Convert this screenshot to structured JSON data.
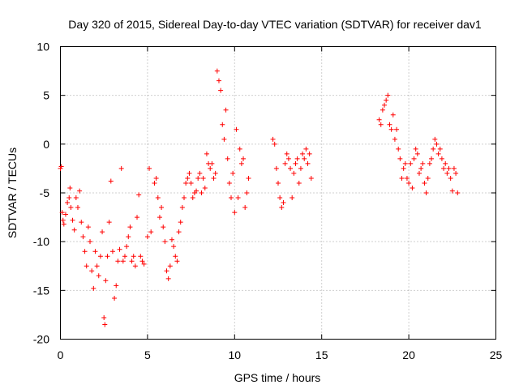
{
  "chart_data": {
    "type": "scatter",
    "title": "Day 320 of 2015, Sidereal Day-to-day VTEC variation (SDTVAR) for receiver dav1",
    "xlabel": "GPS time / hours",
    "ylabel": "SDTVAR / TECUs",
    "xlim": [
      0,
      25
    ],
    "ylim": [
      -20,
      10
    ],
    "xticks": [
      0,
      5,
      10,
      15,
      20,
      25
    ],
    "xtick_labels": [
      "0",
      "5",
      "10",
      "15",
      "20",
      "25"
    ],
    "yticks": [
      -20,
      -15,
      -10,
      -5,
      0,
      5,
      10
    ],
    "ytick_labels": [
      "-20",
      "-15",
      "-10",
      "-5",
      "0",
      "5",
      "10"
    ],
    "grid": true,
    "marker": "+",
    "color": "#ff0000",
    "series": [
      {
        "name": "dav1",
        "x": [
          0.0,
          0.05,
          0.1,
          0.15,
          0.2,
          0.3,
          0.4,
          0.5,
          0.55,
          0.6,
          0.7,
          0.8,
          0.9,
          1.0,
          1.1,
          1.2,
          1.3,
          1.4,
          1.5,
          1.6,
          1.7,
          1.8,
          1.9,
          2.0,
          2.1,
          2.2,
          2.3,
          2.4,
          2.5,
          2.55,
          2.6,
          2.7,
          2.8,
          2.9,
          3.0,
          3.1,
          3.2,
          3.3,
          3.4,
          3.5,
          3.6,
          3.7,
          3.8,
          3.9,
          4.0,
          4.1,
          4.2,
          4.3,
          4.4,
          4.5,
          4.6,
          4.7,
          4.8,
          5.0,
          5.1,
          5.2,
          5.4,
          5.5,
          5.6,
          5.7,
          5.8,
          5.9,
          6.0,
          6.1,
          6.2,
          6.3,
          6.4,
          6.5,
          6.6,
          6.7,
          6.8,
          6.9,
          7.0,
          7.1,
          7.2,
          7.3,
          7.4,
          7.5,
          7.6,
          7.7,
          7.8,
          7.9,
          8.0,
          8.1,
          8.2,
          8.3,
          8.4,
          8.5,
          8.6,
          8.7,
          8.8,
          8.9,
          9.0,
          9.1,
          9.2,
          9.3,
          9.4,
          9.5,
          9.6,
          9.7,
          9.8,
          9.9,
          10.0,
          10.1,
          10.2,
          10.3,
          10.4,
          10.5,
          10.6,
          10.7,
          10.8,
          12.2,
          12.3,
          12.4,
          12.5,
          12.6,
          12.7,
          12.8,
          12.9,
          13.0,
          13.1,
          13.2,
          13.3,
          13.4,
          13.5,
          13.6,
          13.7,
          13.8,
          13.9,
          14.0,
          14.1,
          14.2,
          14.3,
          14.4,
          18.3,
          18.4,
          18.5,
          18.6,
          18.7,
          18.8,
          18.9,
          19.0,
          19.1,
          19.2,
          19.3,
          19.4,
          19.5,
          19.6,
          19.7,
          19.8,
          19.9,
          20.0,
          20.1,
          20.2,
          20.3,
          20.4,
          20.5,
          20.6,
          20.7,
          20.8,
          20.9,
          21.0,
          21.1,
          21.2,
          21.3,
          21.4,
          21.5,
          21.6,
          21.7,
          21.8,
          21.9,
          22.0,
          22.1,
          22.2,
          22.3,
          22.4,
          22.5,
          22.6,
          22.7,
          22.8
        ],
        "y": [
          -2.5,
          -2.3,
          -7.0,
          -7.8,
          -8.2,
          -7.2,
          -6.0,
          -5.5,
          -4.5,
          -6.5,
          -7.8,
          -8.8,
          -5.5,
          -6.5,
          -4.8,
          -8.0,
          -9.5,
          -11.0,
          -12.5,
          -8.5,
          -10.0,
          -13.0,
          -14.8,
          -11.0,
          -12.5,
          -13.5,
          -11.5,
          -9.0,
          -17.8,
          -18.5,
          -14.0,
          -11.5,
          -8.0,
          -3.8,
          -11.0,
          -15.8,
          -14.5,
          -12.0,
          -10.8,
          -2.5,
          -12.0,
          -11.5,
          -10.5,
          -9.5,
          -8.5,
          -12.0,
          -11.5,
          -12.5,
          -7.5,
          -5.2,
          -11.5,
          -12.0,
          -12.3,
          -9.5,
          -2.5,
          -9.0,
          -4.0,
          -3.5,
          -5.5,
          -7.5,
          -6.5,
          -8.5,
          -10.0,
          -13.0,
          -13.8,
          -12.5,
          -9.8,
          -10.5,
          -11.5,
          -12.0,
          -9.0,
          -8.0,
          -6.5,
          -5.5,
          -4.0,
          -3.5,
          -3.0,
          -4.0,
          -5.5,
          -5.0,
          -4.8,
          -3.5,
          -3.0,
          -5.0,
          -3.5,
          -4.5,
          -1.0,
          -2.0,
          -2.5,
          -2.0,
          -3.5,
          -3.0,
          7.5,
          6.5,
          5.5,
          2.0,
          0.5,
          3.5,
          -1.5,
          -4.0,
          -5.5,
          -3.0,
          -7.0,
          1.5,
          -5.5,
          -0.5,
          -2.0,
          -1.5,
          -6.5,
          -5.0,
          -3.5,
          0.5,
          0.0,
          -2.5,
          -4.0,
          -5.5,
          -6.5,
          -6.0,
          -2.0,
          -1.0,
          -1.5,
          -2.5,
          -5.5,
          -3.0,
          -2.0,
          -1.5,
          -4.0,
          -2.5,
          -1.0,
          -1.5,
          -0.5,
          -2.0,
          -1.0,
          -3.5,
          2.5,
          2.0,
          3.5,
          4.0,
          4.5,
          5.0,
          2.0,
          1.5,
          3.0,
          0.5,
          1.5,
          -0.5,
          -1.5,
          -3.5,
          -2.5,
          -2.0,
          -3.5,
          -4.0,
          -2.0,
          -4.5,
          -1.5,
          -0.5,
          -1.0,
          -3.0,
          -2.5,
          -2.0,
          -4.0,
          -5.0,
          -3.5,
          -2.0,
          -1.5,
          -0.5,
          0.5,
          0.0,
          -1.0,
          -0.5,
          -1.5,
          -2.5,
          -2.0,
          -3.0,
          -2.5,
          -3.5,
          -4.8,
          -2.5,
          -3.0,
          -5.0
        ]
      }
    ]
  }
}
